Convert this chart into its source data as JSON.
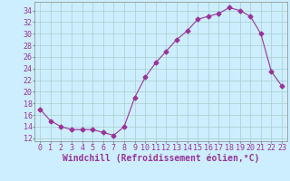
{
  "x": [
    0,
    1,
    2,
    3,
    4,
    5,
    6,
    7,
    8,
    9,
    10,
    11,
    12,
    13,
    14,
    15,
    16,
    17,
    18,
    19,
    20,
    21,
    22,
    23
  ],
  "y": [
    17,
    15,
    14,
    13.5,
    13.5,
    13.5,
    13,
    12.5,
    14,
    19,
    22.5,
    25,
    27,
    29,
    30.5,
    32.5,
    33,
    33.5,
    34.5,
    34,
    33,
    30,
    23.5,
    21
  ],
  "line_color": "#993399",
  "marker": "D",
  "marker_size": 2.5,
  "bg_color": "#cceeff",
  "grid_color": "#aacccc",
  "xlabel": "Windchill (Refroidissement éolien,°C)",
  "xlabel_color": "#993399",
  "xlabel_fontsize": 7,
  "ylabel_ticks": [
    12,
    14,
    16,
    18,
    20,
    22,
    24,
    26,
    28,
    30,
    32,
    34
  ],
  "ylim": [
    11.5,
    35.5
  ],
  "xlim": [
    -0.5,
    23.5
  ],
  "tick_fontsize": 6,
  "tick_color": "#993399"
}
